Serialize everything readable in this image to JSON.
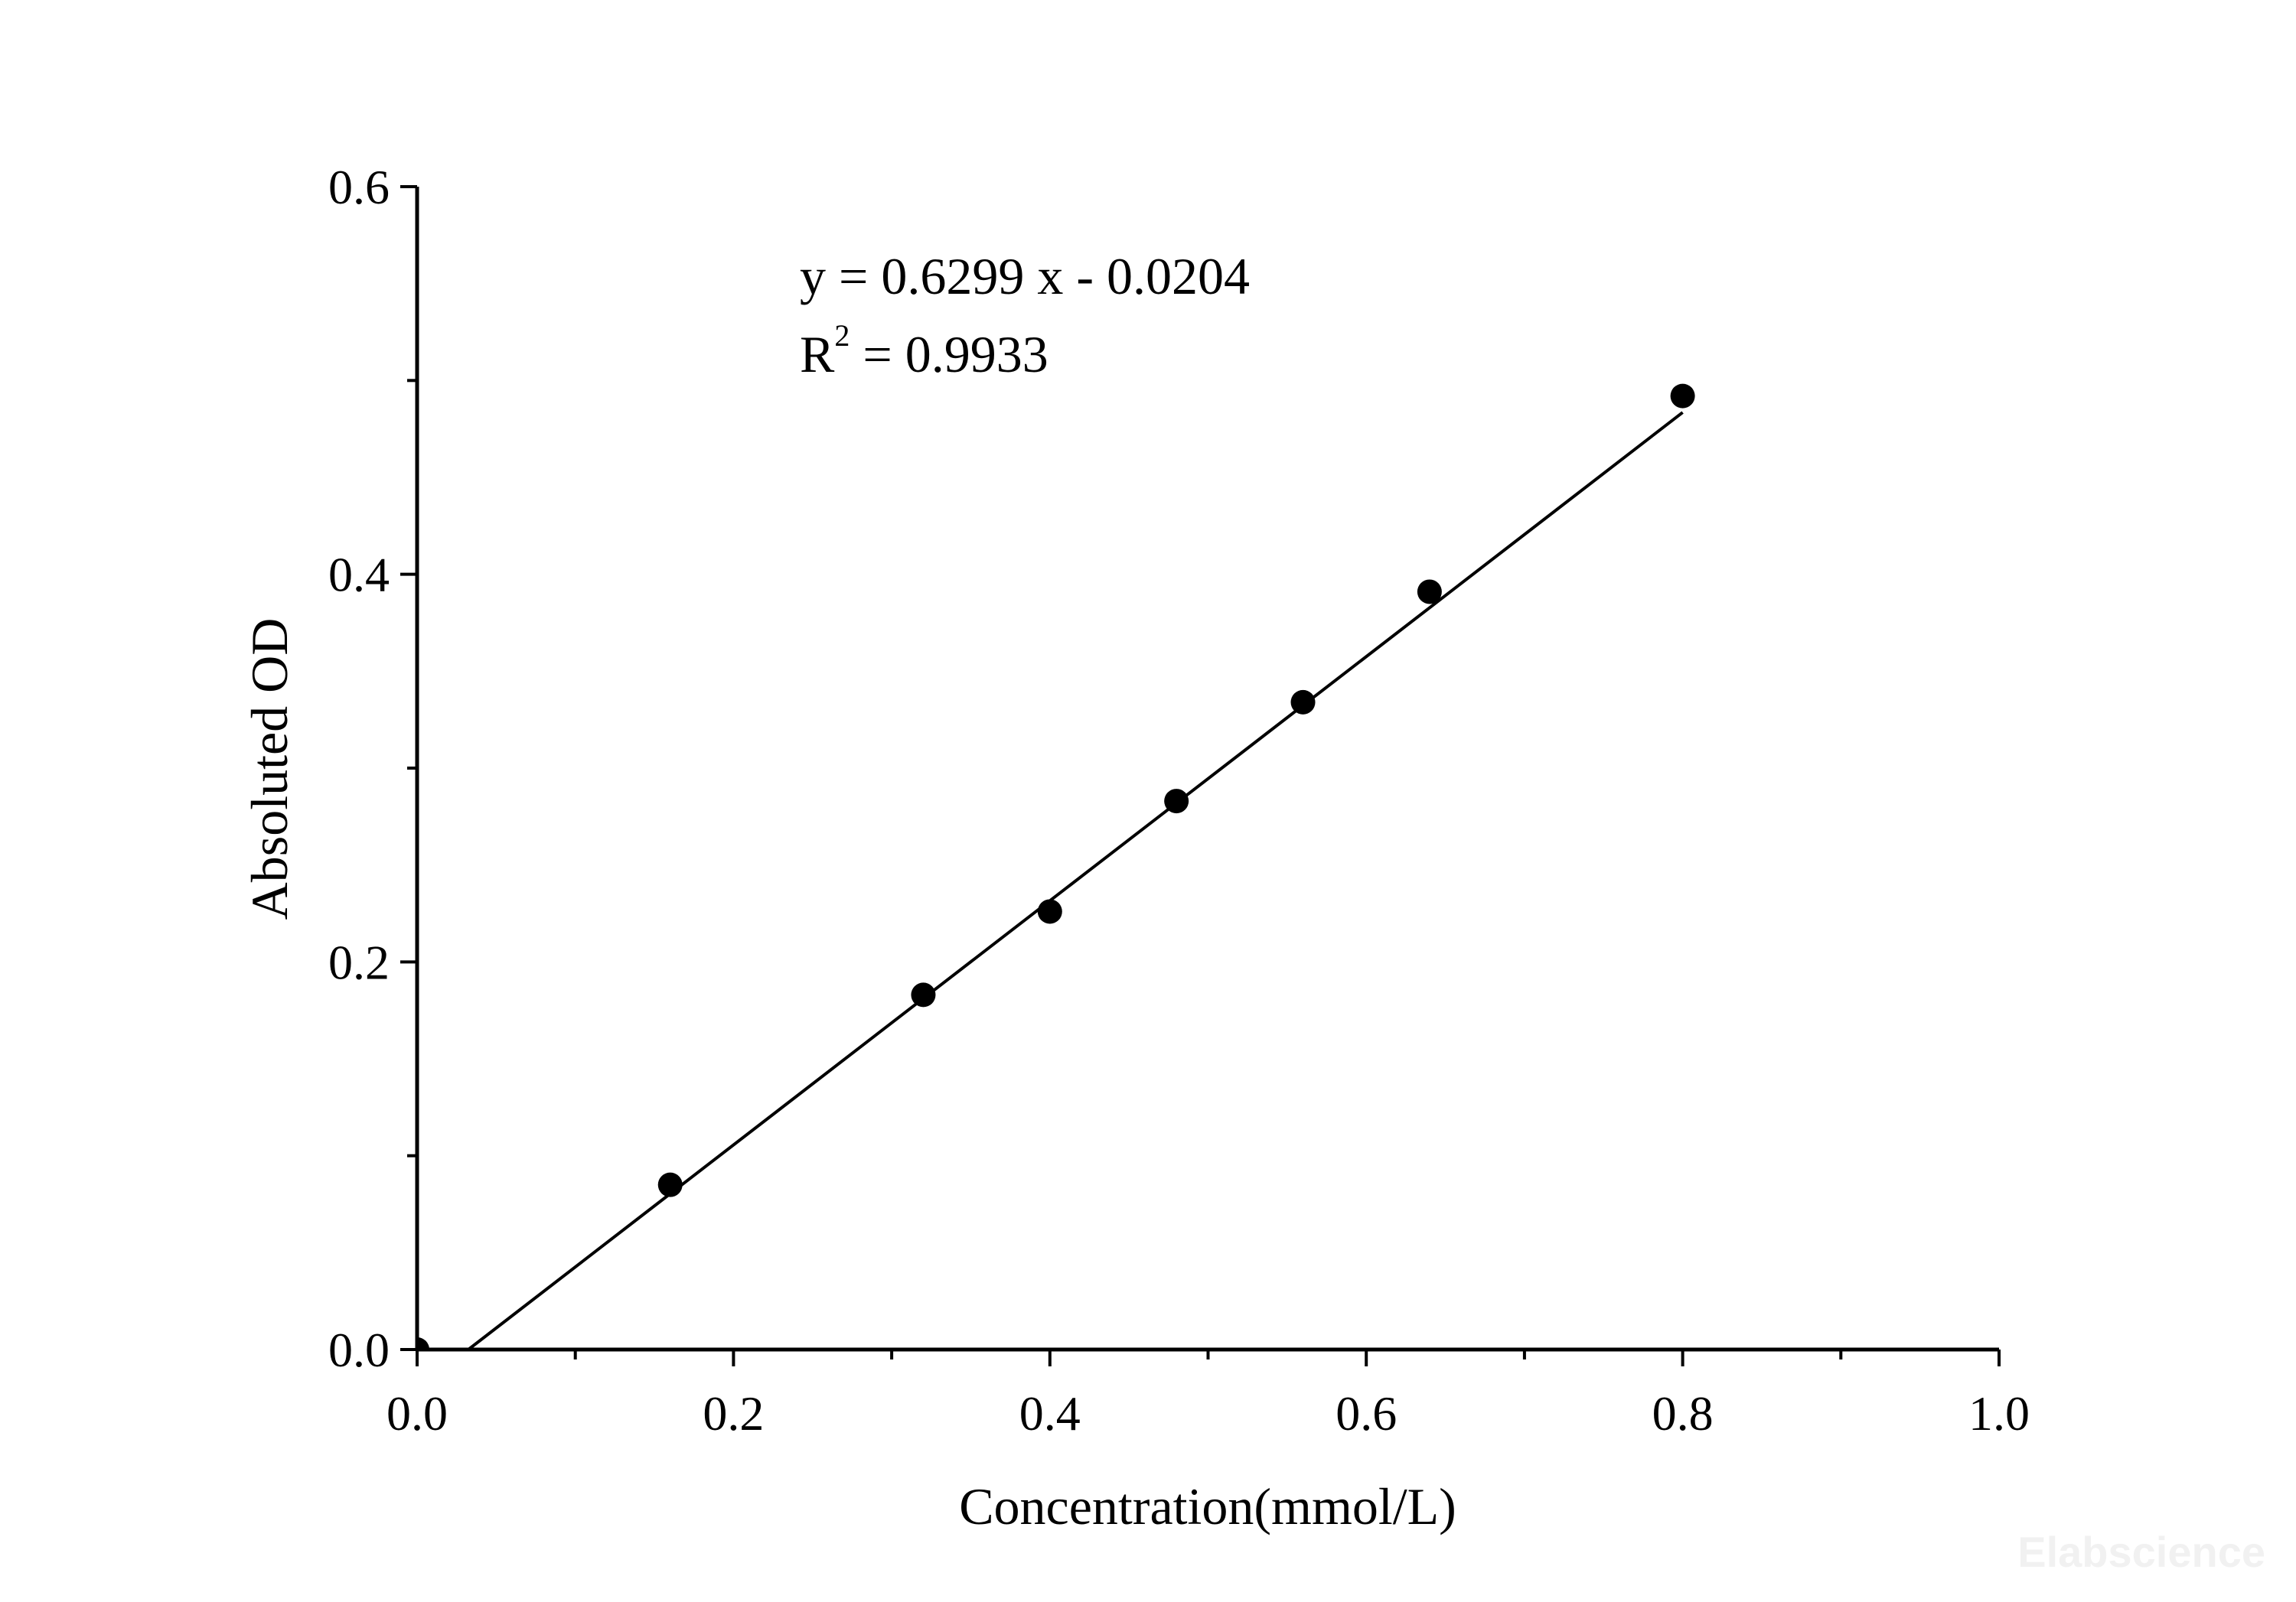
{
  "chart_data": {
    "type": "scatter",
    "xlabel": "Concentration(mmol/L)",
    "ylabel": "Absoluted OD",
    "xlim": [
      0,
      1.0
    ],
    "ylim": [
      0,
      0.6
    ],
    "x_ticks": [
      "0.0",
      "0.2",
      "0.4",
      "0.6",
      "0.8",
      "1.0"
    ],
    "x_tick_values": [
      0,
      0.2,
      0.4,
      0.6,
      0.8,
      1.0
    ],
    "x_minor_tick_values": [
      0.1,
      0.3,
      0.5,
      0.7,
      0.9
    ],
    "y_ticks": [
      "0.0",
      "0.2",
      "0.4",
      "0.6"
    ],
    "y_tick_values": [
      0,
      0.2,
      0.4,
      0.6
    ],
    "y_minor_tick_values": [
      0.1,
      0.3,
      0.5
    ],
    "grid": false,
    "series": [
      {
        "x": [
          0,
          0.16,
          0.32,
          0.4,
          0.48,
          0.56,
          0.64,
          0.8
        ],
        "y": [
          0.0,
          0.085,
          0.183,
          0.226,
          0.283,
          0.334,
          0.391,
          0.492
        ]
      }
    ],
    "fit_line": {
      "slope": 0.6299,
      "intercept": -0.0204,
      "x_range": [
        0.0324,
        0.8
      ]
    },
    "annotations": {
      "equation": "y = 0.6299 x - 0.0204",
      "r_label": "R",
      "r_sup": "2",
      "r_value": " = 0.9933"
    },
    "colors": {
      "marker": "#000000",
      "line": "#000000",
      "axis": "#000000"
    }
  },
  "watermark": {
    "text": "Elabscience"
  }
}
